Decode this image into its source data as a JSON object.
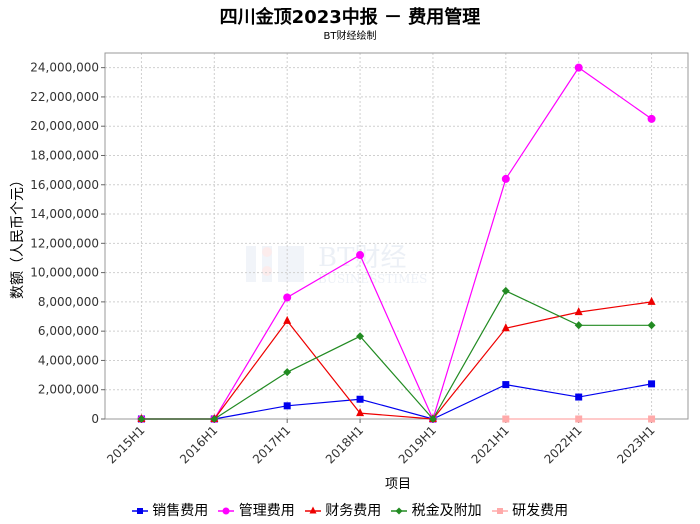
{
  "title": "四川金顶2023中报 － 费用管理",
  "subtitle": "BT财经绘制",
  "watermark": {
    "main": "BT财经",
    "sub": "BUSINESSTIMES"
  },
  "chart_data": {
    "type": "line",
    "categories": [
      "2015H1",
      "2016H1",
      "2017H1",
      "2018H1",
      "2019H1",
      "2021H1",
      "2022H1",
      "2023H1"
    ],
    "xlabel": "项目",
    "ylabel": "数额（人民币个元）",
    "ylim": [
      0,
      25000000
    ],
    "yticks": [
      0,
      2000000,
      4000000,
      6000000,
      8000000,
      10000000,
      12000000,
      14000000,
      16000000,
      18000000,
      20000000,
      22000000,
      24000000
    ],
    "ytick_labels": [
      "0",
      "2,000,000",
      "4,000,000",
      "6,000,000",
      "8,000,000",
      "10,000,000",
      "12,000,000",
      "14,000,000",
      "16,000,000",
      "18,000,000",
      "20,000,000",
      "22,000,000",
      "24,000,000"
    ],
    "grid": true,
    "legend_position": "bottom",
    "series": [
      {
        "name": "销售费用",
        "color": "#0000ee",
        "marker": "square",
        "values": [
          0,
          0,
          900000,
          1350000,
          0,
          2350000,
          1500000,
          2400000
        ]
      },
      {
        "name": "管理费用",
        "color": "#ff00ff",
        "marker": "circle",
        "values": [
          0,
          0,
          8300000,
          11200000,
          0,
          16400000,
          24000000,
          20500000
        ]
      },
      {
        "name": "财务费用",
        "color": "#ee0000",
        "marker": "triangle",
        "values": [
          0,
          0,
          6700000,
          400000,
          0,
          6200000,
          7300000,
          8000000
        ]
      },
      {
        "name": "税金及附加",
        "color": "#228b22",
        "marker": "diamond",
        "values": [
          0,
          0,
          3200000,
          5650000,
          0,
          8750000,
          6400000,
          6400000
        ]
      },
      {
        "name": "研发费用",
        "color": "#ffaaaa",
        "marker": "square",
        "values": [
          null,
          null,
          null,
          null,
          null,
          0,
          0,
          0
        ]
      }
    ]
  }
}
